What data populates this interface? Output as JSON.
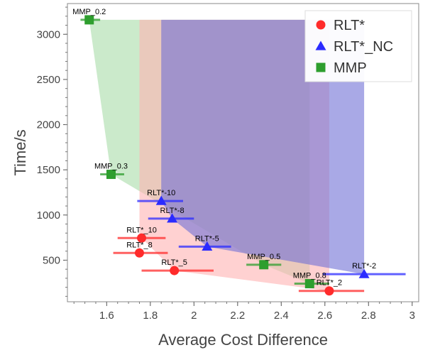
{
  "chart_data": {
    "type": "scatter",
    "xlabel": "Average Cost Difference",
    "ylabel": "Time/s",
    "xlim": [
      1.42,
      3.03
    ],
    "ylim": [
      40,
      3340
    ],
    "x_ticks": [
      1.6,
      1.8,
      2,
      2.2,
      2.4,
      2.6,
      2.8,
      3
    ],
    "x_tick_labels": [
      "1.6",
      "1.8",
      "2",
      "2.2",
      "2.4",
      "2.6",
      "2.8",
      "3"
    ],
    "y_ticks": [
      500,
      1000,
      1500,
      2000,
      2500,
      3000
    ],
    "y_tick_labels": [
      "500",
      "1000",
      "1500",
      "2000",
      "2500",
      "3000"
    ],
    "legend_position": "top-right",
    "region_top": 3160,
    "series": [
      {
        "name": "RLT*",
        "marker": "circle",
        "color": "#ff2b2b",
        "band_color": "#ffb3b3",
        "points": [
          {
            "x": 1.76,
            "y": 745,
            "xerr": [
              1.65,
              1.87
            ],
            "label": "RLT*_10"
          },
          {
            "x": 1.75,
            "y": 580,
            "xerr": [
              1.63,
              1.88
            ],
            "label": "RLT*_8"
          },
          {
            "x": 1.91,
            "y": 385,
            "xerr": [
              1.76,
              2.09
            ],
            "label": "RLT*_5"
          },
          {
            "x": 2.62,
            "y": 160,
            "xerr": [
              2.48,
              2.78
            ],
            "label": "RLT*_2"
          }
        ]
      },
      {
        "name": "RLT*_NC",
        "marker": "triangle",
        "color": "#2b2bff",
        "band_color": "#6f6fd6",
        "points": [
          {
            "x": 1.85,
            "y": 1155,
            "xerr": [
              1.74,
              1.95
            ],
            "label": "RLT*-10"
          },
          {
            "x": 1.9,
            "y": 960,
            "xerr": [
              1.79,
              2.0
            ],
            "label": "RLT*-8"
          },
          {
            "x": 2.06,
            "y": 650,
            "xerr": [
              1.93,
              2.17
            ],
            "label": "RLT*-5"
          },
          {
            "x": 2.78,
            "y": 345,
            "xerr": [
              2.59,
              2.97
            ],
            "label": "RLT*-2"
          }
        ]
      },
      {
        "name": "MMP",
        "marker": "square",
        "color": "#2e9e2e",
        "band_color": "#a8dca8",
        "points": [
          {
            "x": 1.52,
            "y": 3160,
            "xerr": [
              1.48,
              1.57
            ],
            "label": "MMP_0.2"
          },
          {
            "x": 1.62,
            "y": 1450,
            "xerr": [
              1.57,
              1.68
            ],
            "label": "MMP_0.3"
          },
          {
            "x": 2.32,
            "y": 450,
            "xerr": [
              2.24,
              2.4
            ],
            "label": "MMP_0.5"
          },
          {
            "x": 2.53,
            "y": 240,
            "xerr": [
              2.46,
              2.62
            ],
            "label": "MMP_0.8"
          }
        ]
      }
    ]
  }
}
